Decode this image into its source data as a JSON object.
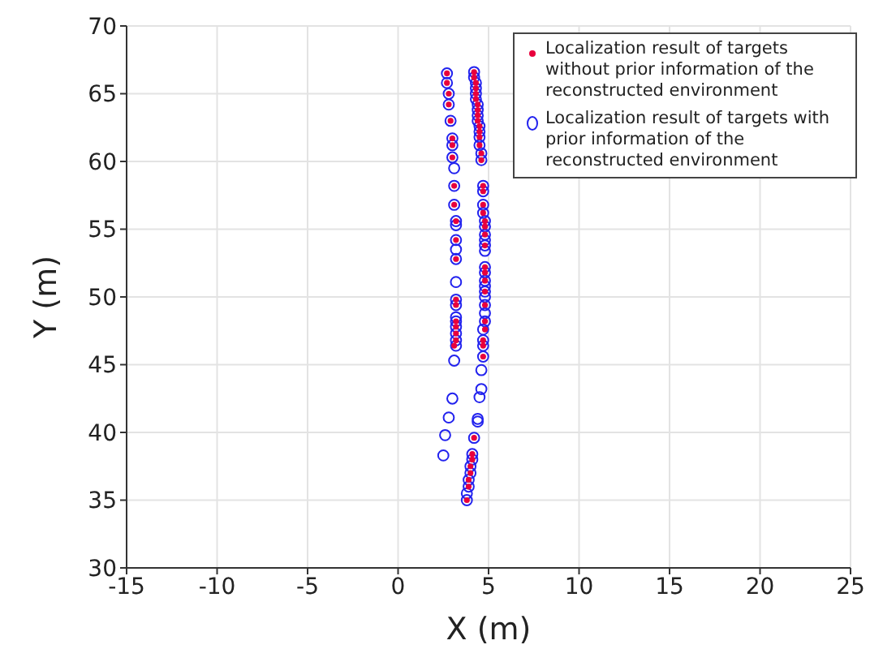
{
  "chart_data": {
    "type": "scatter",
    "xlabel": "X (m)",
    "ylabel": "Y (m)",
    "xlim": [
      -15,
      25
    ],
    "xticks": [
      -15,
      -10,
      -5,
      0,
      5,
      10,
      15,
      20,
      25
    ],
    "ylim": [
      30,
      70
    ],
    "yticks": [
      30,
      35,
      40,
      45,
      50,
      55,
      60,
      65,
      70
    ],
    "grid": true,
    "legend": "top right",
    "marker": "circle",
    "series": [
      {
        "name": "Localization result of targets without prior information of the reconstructed environment",
        "color": "#e8003c",
        "x": [
          2.7,
          2.7,
          2.8,
          2.8,
          2.9,
          3.0,
          3.0,
          3.0,
          3.1,
          3.1,
          3.2,
          3.2,
          3.2,
          3.2,
          3.2,
          3.2,
          3.2,
          3.2,
          3.2,
          3.1,
          4.2,
          4.2,
          4.3,
          4.3,
          4.3,
          4.3,
          4.4,
          4.4,
          4.4,
          4.4,
          4.5,
          4.5,
          4.5,
          4.5,
          4.6,
          4.6,
          4.7,
          4.7,
          4.7,
          4.7,
          4.8,
          4.8,
          4.8,
          4.8,
          4.8,
          4.8,
          4.8,
          4.8,
          4.8,
          4.8,
          4.8,
          4.7,
          4.7,
          4.7,
          4.2,
          4.1,
          4.1,
          4.0,
          4.0,
          3.9,
          3.9,
          3.8
        ],
        "values": [
          66.5,
          65.8,
          65.0,
          64.2,
          63.0,
          61.7,
          61.2,
          60.3,
          58.2,
          56.8,
          55.6,
          54.2,
          52.8,
          49.8,
          49.4,
          48.2,
          47.8,
          47.3,
          46.8,
          46.4,
          66.6,
          66.2,
          65.8,
          65.4,
          65.0,
          64.6,
          64.2,
          63.8,
          63.4,
          63.0,
          62.6,
          62.2,
          61.8,
          61.2,
          60.6,
          60.1,
          58.2,
          57.8,
          56.8,
          56.2,
          55.6,
          55.2,
          54.6,
          53.8,
          52.2,
          51.8,
          51.2,
          50.4,
          49.4,
          48.2,
          47.6,
          46.8,
          46.4,
          45.6,
          39.6,
          38.4,
          38.0,
          37.5,
          37.0,
          36.5,
          36.0,
          35.0
        ]
      },
      {
        "name": "Localization result of targets with prior information of the reconstructed environment",
        "color": "#2222ee",
        "x": [
          2.7,
          2.7,
          2.8,
          2.8,
          2.9,
          3.0,
          3.0,
          3.0,
          3.1,
          3.1,
          3.1,
          3.2,
          3.2,
          3.2,
          3.2,
          3.2,
          3.2,
          3.2,
          3.2,
          3.2,
          3.2,
          3.2,
          3.2,
          3.2,
          3.2,
          3.1,
          3.0,
          2.8,
          2.6,
          2.5,
          4.2,
          4.2,
          4.3,
          4.3,
          4.3,
          4.3,
          4.4,
          4.4,
          4.4,
          4.4,
          4.5,
          4.5,
          4.5,
          4.5,
          4.6,
          4.6,
          4.7,
          4.7,
          4.7,
          4.7,
          4.8,
          4.8,
          4.8,
          4.8,
          4.8,
          4.8,
          4.8,
          4.8,
          4.8,
          4.8,
          4.8,
          4.8,
          4.8,
          4.8,
          4.8,
          4.7,
          4.7,
          4.7,
          4.7,
          4.6,
          4.6,
          4.5,
          4.4,
          4.4,
          4.2,
          4.1,
          4.1,
          4.0,
          4.0,
          3.9,
          3.9,
          3.8,
          3.8
        ],
        "values": [
          66.5,
          65.8,
          65.0,
          64.2,
          63.0,
          61.7,
          61.2,
          60.3,
          59.5,
          58.2,
          56.8,
          55.6,
          55.3,
          54.2,
          53.5,
          52.8,
          51.1,
          49.8,
          49.4,
          48.5,
          48.2,
          47.8,
          47.3,
          46.8,
          46.4,
          45.3,
          42.5,
          41.1,
          39.8,
          38.3,
          66.6,
          66.2,
          65.8,
          65.4,
          65.0,
          64.6,
          64.2,
          63.8,
          63.4,
          63.0,
          62.6,
          62.2,
          61.8,
          61.2,
          60.6,
          60.1,
          58.2,
          57.8,
          56.8,
          56.2,
          55.6,
          55.2,
          54.6,
          54.2,
          53.8,
          53.4,
          52.2,
          51.8,
          51.2,
          50.8,
          50.4,
          50.0,
          49.4,
          48.8,
          48.2,
          47.6,
          46.8,
          46.4,
          45.6,
          44.6,
          43.2,
          42.6,
          41.0,
          40.8,
          39.6,
          38.4,
          38.0,
          37.5,
          37.0,
          36.5,
          36.0,
          35.5,
          35.0
        ]
      }
    ]
  }
}
